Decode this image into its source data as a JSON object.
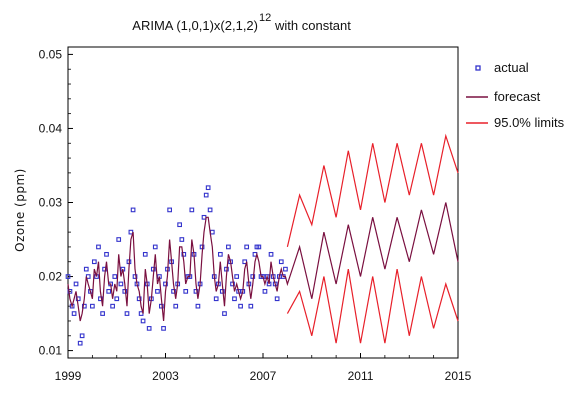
{
  "chart_data": {
    "type": "line",
    "title": "ARIMA (1,0,1)x(2,1,2)",
    "title_superscript": "12",
    "title_suffix": "with constant",
    "xlabel": "",
    "ylabel": "Ozone (ppm)",
    "xlim": [
      1999,
      2015
    ],
    "ylim": [
      0.009,
      0.051
    ],
    "xticks": [
      1999,
      2003,
      2007,
      2011,
      2015
    ],
    "yticks": [
      0.01,
      0.02,
      0.03,
      0.04,
      0.05
    ],
    "ytick_labels": [
      "0.01",
      "0.02",
      "0.03",
      "0.04",
      "0.05"
    ],
    "grid": false,
    "legend_position": "right",
    "colors": {
      "actual": "#3333cc",
      "forecast": "#7a1040",
      "limits": "#e8202a"
    },
    "legend": {
      "actual": "actual",
      "forecast": "forecast",
      "limits": "95.0% limits"
    },
    "series": [
      {
        "name": "actual",
        "style": "markers",
        "x": [
          1999.0,
          1999.08,
          1999.17,
          1999.25,
          1999.33,
          1999.42,
          1999.5,
          1999.58,
          1999.67,
          1999.75,
          1999.83,
          1999.92,
          2000.0,
          2000.08,
          2000.17,
          2000.25,
          2000.33,
          2000.42,
          2000.5,
          2000.58,
          2000.67,
          2000.75,
          2000.83,
          2000.92,
          2001.0,
          2001.08,
          2001.17,
          2001.25,
          2001.33,
          2001.42,
          2001.5,
          2001.58,
          2001.67,
          2001.75,
          2001.83,
          2001.92,
          2002.0,
          2002.08,
          2002.17,
          2002.25,
          2002.33,
          2002.42,
          2002.5,
          2002.58,
          2002.67,
          2002.75,
          2002.83,
          2002.92,
          2003.0,
          2003.08,
          2003.17,
          2003.25,
          2003.33,
          2003.42,
          2003.5,
          2003.58,
          2003.67,
          2003.75,
          2003.83,
          2003.92,
          2004.0,
          2004.08,
          2004.17,
          2004.25,
          2004.33,
          2004.42,
          2004.5,
          2004.58,
          2004.67,
          2004.75,
          2004.83,
          2004.92,
          2005.0,
          2005.08,
          2005.17,
          2005.25,
          2005.33,
          2005.42,
          2005.5,
          2005.58,
          2005.67,
          2005.75,
          2005.83,
          2005.92,
          2006.0,
          2006.08,
          2006.17,
          2006.25,
          2006.33,
          2006.42,
          2006.5,
          2006.58,
          2006.67,
          2006.75,
          2006.83,
          2006.92,
          2007.0,
          2007.08,
          2007.17,
          2007.25,
          2007.33,
          2007.42,
          2007.5,
          2007.58,
          2007.67,
          2007.75,
          2007.83,
          2007.92
        ],
        "y": [
          0.02,
          0.018,
          0.016,
          0.015,
          0.019,
          0.017,
          0.011,
          0.012,
          0.016,
          0.021,
          0.02,
          0.018,
          0.016,
          0.022,
          0.02,
          0.024,
          0.017,
          0.015,
          0.021,
          0.023,
          0.018,
          0.019,
          0.016,
          0.02,
          0.017,
          0.025,
          0.019,
          0.021,
          0.018,
          0.015,
          0.022,
          0.026,
          0.029,
          0.02,
          0.019,
          0.017,
          0.015,
          0.014,
          0.023,
          0.019,
          0.013,
          0.017,
          0.021,
          0.024,
          0.018,
          0.02,
          0.016,
          0.013,
          0.019,
          0.021,
          0.029,
          0.022,
          0.018,
          0.016,
          0.019,
          0.027,
          0.025,
          0.023,
          0.018,
          0.02,
          0.02,
          0.029,
          0.023,
          0.018,
          0.016,
          0.019,
          0.024,
          0.028,
          0.031,
          0.032,
          0.029,
          0.026,
          0.02,
          0.017,
          0.019,
          0.023,
          0.018,
          0.015,
          0.021,
          0.024,
          0.022,
          0.019,
          0.017,
          0.02,
          0.018,
          0.016,
          0.018,
          0.022,
          0.024,
          0.019,
          0.016,
          0.02,
          0.023,
          0.024,
          0.024,
          0.02,
          0.02,
          0.018,
          0.02,
          0.019,
          0.023,
          0.02,
          0.019,
          0.017,
          0.02,
          0.022,
          0.02,
          0.021
        ]
      },
      {
        "name": "forecast",
        "style": "line",
        "x": [
          1999.0,
          1999.08,
          1999.17,
          1999.25,
          1999.33,
          1999.42,
          1999.5,
          1999.58,
          1999.67,
          1999.75,
          1999.83,
          1999.92,
          2000.0,
          2000.08,
          2000.17,
          2000.25,
          2000.33,
          2000.42,
          2000.5,
          2000.58,
          2000.67,
          2000.75,
          2000.83,
          2000.92,
          2001.0,
          2001.08,
          2001.17,
          2001.25,
          2001.33,
          2001.42,
          2001.5,
          2001.58,
          2001.67,
          2001.75,
          2001.83,
          2001.92,
          2002.0,
          2002.08,
          2002.17,
          2002.25,
          2002.33,
          2002.42,
          2002.5,
          2002.58,
          2002.67,
          2002.75,
          2002.83,
          2002.92,
          2003.0,
          2003.08,
          2003.17,
          2003.25,
          2003.33,
          2003.42,
          2003.5,
          2003.58,
          2003.67,
          2003.75,
          2003.83,
          2003.92,
          2004.0,
          2004.08,
          2004.17,
          2004.25,
          2004.33,
          2004.42,
          2004.5,
          2004.58,
          2004.67,
          2004.75,
          2004.83,
          2004.92,
          2005.0,
          2005.08,
          2005.17,
          2005.25,
          2005.33,
          2005.42,
          2005.5,
          2005.58,
          2005.67,
          2005.75,
          2005.83,
          2005.92,
          2006.0,
          2006.08,
          2006.17,
          2006.25,
          2006.33,
          2006.42,
          2006.5,
          2006.58,
          2006.67,
          2006.75,
          2006.83,
          2006.92,
          2007.0,
          2007.08,
          2007.17,
          2007.25,
          2007.33,
          2007.42,
          2007.5,
          2007.58,
          2007.67,
          2007.75,
          2007.83,
          2007.92,
          2008.0,
          2008.5,
          2009.0,
          2009.5,
          2010.0,
          2010.5,
          2011.0,
          2011.5,
          2012.0,
          2012.5,
          2013.0,
          2013.5,
          2014.0,
          2014.5,
          2015.0
        ],
        "y": [
          0.019,
          0.017,
          0.016,
          0.017,
          0.018,
          0.016,
          0.014,
          0.015,
          0.017,
          0.02,
          0.019,
          0.018,
          0.017,
          0.021,
          0.02,
          0.022,
          0.018,
          0.016,
          0.02,
          0.022,
          0.019,
          0.019,
          0.017,
          0.019,
          0.018,
          0.023,
          0.02,
          0.021,
          0.019,
          0.016,
          0.021,
          0.025,
          0.026,
          0.021,
          0.019,
          0.018,
          0.016,
          0.015,
          0.021,
          0.019,
          0.015,
          0.017,
          0.02,
          0.023,
          0.019,
          0.02,
          0.017,
          0.014,
          0.018,
          0.02,
          0.025,
          0.022,
          0.019,
          0.017,
          0.019,
          0.024,
          0.024,
          0.022,
          0.019,
          0.02,
          0.02,
          0.025,
          0.023,
          0.019,
          0.017,
          0.019,
          0.023,
          0.026,
          0.028,
          0.028,
          0.026,
          0.024,
          0.02,
          0.018,
          0.019,
          0.022,
          0.019,
          0.016,
          0.02,
          0.023,
          0.022,
          0.02,
          0.018,
          0.019,
          0.018,
          0.017,
          0.018,
          0.021,
          0.022,
          0.019,
          0.017,
          0.019,
          0.022,
          0.023,
          0.022,
          0.02,
          0.02,
          0.019,
          0.02,
          0.019,
          0.022,
          0.02,
          0.019,
          0.018,
          0.02,
          0.021,
          0.02,
          0.02,
          0.019,
          0.024,
          0.017,
          0.026,
          0.019,
          0.027,
          0.02,
          0.028,
          0.021,
          0.028,
          0.022,
          0.029,
          0.023,
          0.03,
          0.022
        ]
      },
      {
        "name": "95.0% limits (upper)",
        "style": "line",
        "x": [
          2008.0,
          2008.5,
          2009.0,
          2009.5,
          2010.0,
          2010.5,
          2011.0,
          2011.5,
          2012.0,
          2012.5,
          2013.0,
          2013.5,
          2014.0,
          2014.5,
          2015.0
        ],
        "y": [
          0.024,
          0.031,
          0.027,
          0.035,
          0.028,
          0.037,
          0.029,
          0.038,
          0.03,
          0.038,
          0.031,
          0.038,
          0.031,
          0.039,
          0.034
        ]
      },
      {
        "name": "95.0% limits (lower)",
        "style": "line",
        "x": [
          2008.0,
          2008.5,
          2009.0,
          2009.5,
          2010.0,
          2010.5,
          2011.0,
          2011.5,
          2012.0,
          2012.5,
          2013.0,
          2013.5,
          2014.0,
          2014.5,
          2015.0
        ],
        "y": [
          0.015,
          0.018,
          0.012,
          0.02,
          0.011,
          0.021,
          0.011,
          0.02,
          0.011,
          0.021,
          0.012,
          0.02,
          0.013,
          0.019,
          0.014
        ]
      }
    ]
  }
}
